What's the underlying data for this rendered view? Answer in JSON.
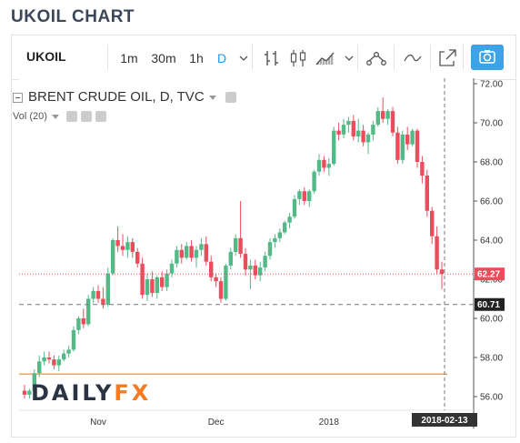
{
  "page_title": "UKOIL CHART",
  "toolbar": {
    "symbol": "UKOIL",
    "intervals": [
      "1m",
      "30m",
      "1h",
      "D"
    ],
    "active_interval": "D",
    "icons": [
      "chevron-down-icon",
      "bar-style-icon",
      "candlestick-icon",
      "area-chart-icon",
      "indicators-icon",
      "compare-line-icon",
      "popout-icon",
      "camera-icon"
    ]
  },
  "legend": {
    "title": "BRENT CRUDE OIL, D, TVC",
    "volume": "Vol (20)"
  },
  "colors": {
    "up": "#53b987",
    "down": "#eb4d5c",
    "horizontal_line": "#f5a35c",
    "price_line": "#eb4d5c"
  },
  "price_tags": {
    "last": "62.27",
    "level": "60.71"
  },
  "cursor_date": "2018-02-13",
  "watermark": {
    "part1": "DAILY",
    "part2": "FX"
  },
  "chart_data": {
    "type": "candlestick",
    "title": "BRENT CRUDE OIL, D, TVC",
    "y_ticks": [
      "72.00",
      "70.00",
      "68.00",
      "66.00",
      "64.00",
      "62.00",
      "60.00",
      "58.00",
      "56.00"
    ],
    "ylim": [
      55.0,
      72.2
    ],
    "x_ticks": [
      "Nov",
      "Dec",
      "2018",
      "Feb"
    ],
    "x_tick_index": [
      15,
      39,
      62,
      82
    ],
    "horizontal_line": 57.15,
    "last_price": 62.27,
    "marker_level": 60.71,
    "candles": [
      [
        56.3,
        56.6,
        55.9,
        56.1
      ],
      [
        56.1,
        56.4,
        55.9,
        56.3
      ],
      [
        56.3,
        57.4,
        56.2,
        57.2
      ],
      [
        57.2,
        58.1,
        57.0,
        57.8
      ],
      [
        57.8,
        58.3,
        57.6,
        58.0
      ],
      [
        58.0,
        58.3,
        57.7,
        57.9
      ],
      [
        57.9,
        58.1,
        57.4,
        57.6
      ],
      [
        57.6,
        58.1,
        57.3,
        57.9
      ],
      [
        57.9,
        58.4,
        57.8,
        58.2
      ],
      [
        58.2,
        58.6,
        58.0,
        58.4
      ],
      [
        58.4,
        59.6,
        58.3,
        59.4
      ],
      [
        59.4,
        60.1,
        59.2,
        60.0
      ],
      [
        60.0,
        60.5,
        59.5,
        59.7
      ],
      [
        59.7,
        61.2,
        59.6,
        61.0
      ],
      [
        61.0,
        61.6,
        60.8,
        61.4
      ],
      [
        61.4,
        61.7,
        60.8,
        61.0
      ],
      [
        61.0,
        61.6,
        60.5,
        60.7
      ],
      [
        60.7,
        62.6,
        60.6,
        62.3
      ],
      [
        62.3,
        64.1,
        62.2,
        64.0
      ],
      [
        64.0,
        64.7,
        63.4,
        63.7
      ],
      [
        63.7,
        64.3,
        63.2,
        63.5
      ],
      [
        63.5,
        64.2,
        63.1,
        63.9
      ],
      [
        63.9,
        64.1,
        63.1,
        63.4
      ],
      [
        63.4,
        63.6,
        62.6,
        62.8
      ],
      [
        62.8,
        63.1,
        61.0,
        61.2
      ],
      [
        61.2,
        62.3,
        60.9,
        62.0
      ],
      [
        62.0,
        62.4,
        61.1,
        61.3
      ],
      [
        61.3,
        62.2,
        61.0,
        62.1
      ],
      [
        62.1,
        62.4,
        61.4,
        61.6
      ],
      [
        61.6,
        62.5,
        61.4,
        62.3
      ],
      [
        62.3,
        63.0,
        62.1,
        62.8
      ],
      [
        62.8,
        63.7,
        62.6,
        63.5
      ],
      [
        63.5,
        63.8,
        62.8,
        63.1
      ],
      [
        63.1,
        63.9,
        63.0,
        63.7
      ],
      [
        63.7,
        64.0,
        62.9,
        63.1
      ],
      [
        63.1,
        63.7,
        62.6,
        63.5
      ],
      [
        63.5,
        64.1,
        63.2,
        63.8
      ],
      [
        63.8,
        64.2,
        62.7,
        62.9
      ],
      [
        62.9,
        63.2,
        61.9,
        62.1
      ],
      [
        62.1,
        62.3,
        61.6,
        61.9
      ],
      [
        61.9,
        62.1,
        60.8,
        61.0
      ],
      [
        61.0,
        62.8,
        60.9,
        62.7
      ],
      [
        62.7,
        63.6,
        62.5,
        63.4
      ],
      [
        63.4,
        64.3,
        63.2,
        64.1
      ],
      [
        64.1,
        66.0,
        63.1,
        63.3
      ],
      [
        63.3,
        63.6,
        62.2,
        62.5
      ],
      [
        62.5,
        63.0,
        61.5,
        62.7
      ],
      [
        62.7,
        63.0,
        62.0,
        62.2
      ],
      [
        62.2,
        62.9,
        61.9,
        62.6
      ],
      [
        62.6,
        63.4,
        62.4,
        63.2
      ],
      [
        63.2,
        64.1,
        63.0,
        63.9
      ],
      [
        63.9,
        64.3,
        63.6,
        64.1
      ],
      [
        64.1,
        64.6,
        63.9,
        64.4
      ],
      [
        64.4,
        65.0,
        64.3,
        64.9
      ],
      [
        64.9,
        65.4,
        64.6,
        65.2
      ],
      [
        65.2,
        66.3,
        65.1,
        66.1
      ],
      [
        66.1,
        66.6,
        65.8,
        66.5
      ],
      [
        66.5,
        66.7,
        65.8,
        66.0
      ],
      [
        66.0,
        66.6,
        65.7,
        66.5
      ],
      [
        66.5,
        67.6,
        66.4,
        67.5
      ],
      [
        67.5,
        68.4,
        67.3,
        68.1
      ],
      [
        68.1,
        68.3,
        67.5,
        67.7
      ],
      [
        67.7,
        68.2,
        67.3,
        67.9
      ],
      [
        67.9,
        69.8,
        67.8,
        69.6
      ],
      [
        69.6,
        70.0,
        69.1,
        69.4
      ],
      [
        69.4,
        70.2,
        69.2,
        69.9
      ],
      [
        69.9,
        70.3,
        69.5,
        70.1
      ],
      [
        70.1,
        70.4,
        69.1,
        69.3
      ],
      [
        69.3,
        70.2,
        69.0,
        69.6
      ],
      [
        69.6,
        69.9,
        68.8,
        69.0
      ],
      [
        69.0,
        69.5,
        68.4,
        69.4
      ],
      [
        69.4,
        70.1,
        69.1,
        69.9
      ],
      [
        69.9,
        70.8,
        69.8,
        70.6
      ],
      [
        70.6,
        71.3,
        70.0,
        70.2
      ],
      [
        70.2,
        70.7,
        69.9,
        70.6
      ],
      [
        70.6,
        70.8,
        69.3,
        69.5
      ],
      [
        69.5,
        69.8,
        67.9,
        68.1
      ],
      [
        68.1,
        69.6,
        67.9,
        69.4
      ],
      [
        69.4,
        69.8,
        68.6,
        68.9
      ],
      [
        68.9,
        69.7,
        68.8,
        69.6
      ],
      [
        69.6,
        69.7,
        67.7,
        68.0
      ],
      [
        68.0,
        68.3,
        66.9,
        67.3
      ],
      [
        67.3,
        67.6,
        65.2,
        65.5
      ],
      [
        65.5,
        65.7,
        63.8,
        64.2
      ],
      [
        64.2,
        64.7,
        62.3,
        62.5
      ],
      [
        62.5,
        62.9,
        61.5,
        62.27
      ]
    ]
  }
}
